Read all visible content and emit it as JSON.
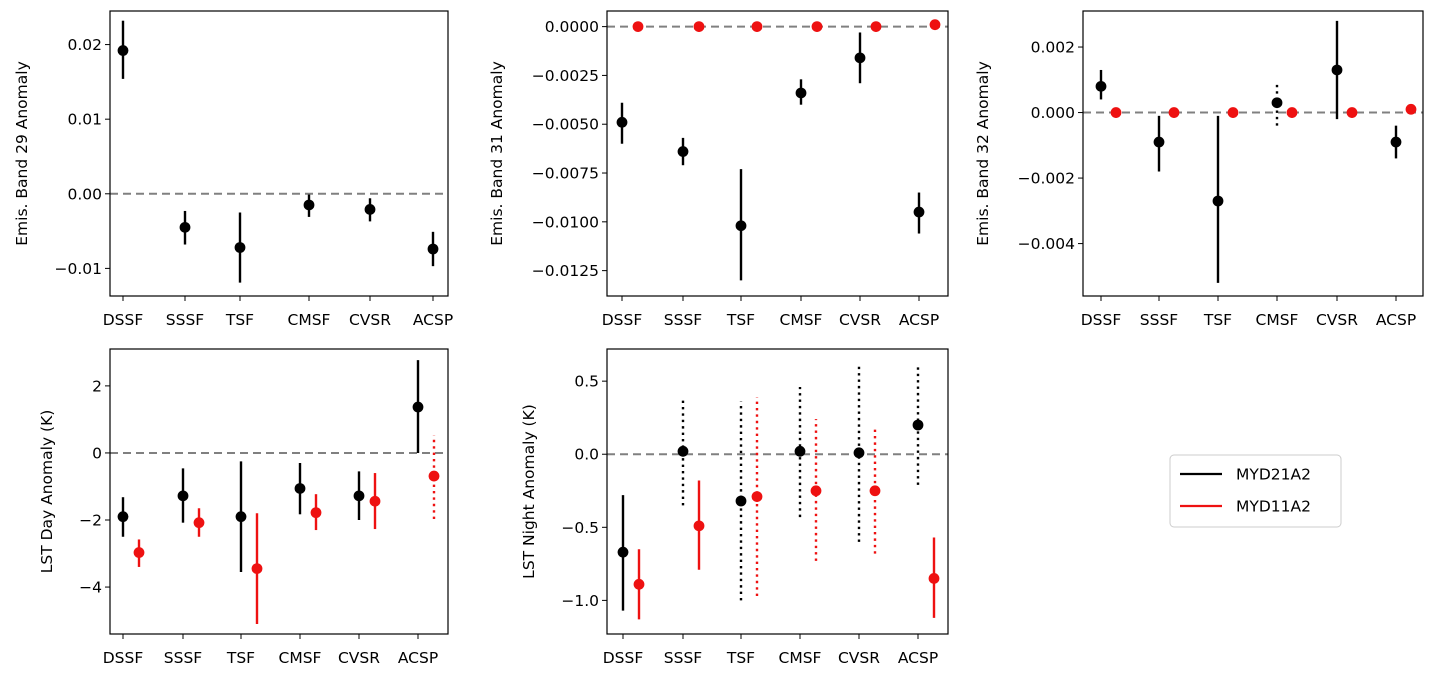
{
  "colors": {
    "series_1": "#000000",
    "series_2": "#ee1111",
    "zero_line": "#808080"
  },
  "legend": {
    "placement": "right of bottom row",
    "entries": [
      {
        "label": "MYD21A2",
        "color": "#000000"
      },
      {
        "label": "MYD11A2",
        "color": "#ee1111"
      }
    ]
  },
  "chart_data": [
    {
      "type": "scatter",
      "ylabel": "Emis. Band 29 Anomaly",
      "categories": [
        "DSSF",
        "SSSF",
        "TSF",
        "CMSF",
        "CVSR",
        "ACSP"
      ],
      "ylim": [
        -0.0137,
        0.0245
      ],
      "yticks": [
        -0.01,
        0.0,
        0.01,
        0.02
      ],
      "ytick_labels": [
        "−0.01",
        "0.00",
        "0.01",
        "0.02"
      ],
      "zero_line": true,
      "series": [
        {
          "name": "MYD21A2",
          "color": "#000000",
          "values": [
            0.0192,
            -0.0045,
            -0.0072,
            -0.0015,
            -0.0021,
            -0.0074
          ],
          "err_low": [
            0.0154,
            -0.0068,
            -0.0119,
            -0.0031,
            -0.0037,
            -0.0097
          ],
          "err_high": [
            0.0232,
            -0.0023,
            -0.0025,
            -0.0001,
            -0.0006,
            -0.0051
          ],
          "dotted": [
            false,
            false,
            false,
            false,
            false,
            false
          ]
        }
      ]
    },
    {
      "type": "scatter",
      "ylabel": "Emis. Band 31 Anomaly",
      "categories": [
        "DSSF",
        "SSSF",
        "TSF",
        "CMSF",
        "CVSR",
        "ACSP"
      ],
      "ylim": [
        -0.0138,
        0.0008
      ],
      "yticks": [
        -0.0125,
        -0.01,
        -0.0075,
        -0.005,
        -0.0025,
        0.0
      ],
      "ytick_labels": [
        "−0.0125",
        "−0.0100",
        "−0.0075",
        "−0.0050",
        "−0.0025",
        "0.0000"
      ],
      "zero_line": true,
      "series": [
        {
          "name": "MYD21A2",
          "color": "#000000",
          "values": [
            -0.0049,
            -0.0064,
            -0.0102,
            -0.0034,
            -0.0016,
            -0.0095
          ],
          "err_low": [
            -0.006,
            -0.0071,
            -0.013,
            -0.004,
            -0.0029,
            -0.0106
          ],
          "err_high": [
            -0.0039,
            -0.0057,
            -0.0073,
            -0.0027,
            -0.0003,
            -0.0085
          ],
          "dotted": [
            false,
            false,
            false,
            false,
            false,
            false
          ]
        },
        {
          "name": "MYD11A2",
          "color": "#ee1111",
          "values": [
            0.0,
            0.0,
            0.0,
            0.0,
            0.0,
            0.0001
          ],
          "err_low": [
            0.0,
            0.0,
            0.0,
            0.0,
            0.0,
            0.0001
          ],
          "err_high": [
            0.0,
            0.0,
            0.0,
            0.0,
            0.0,
            0.0001
          ],
          "dotted": [
            false,
            false,
            false,
            false,
            false,
            false
          ]
        }
      ]
    },
    {
      "type": "scatter",
      "ylabel": "Emis. Band 32 Anomaly",
      "categories": [
        "DSSF",
        "SSSF",
        "TSF",
        "CMSF",
        "CVSR",
        "ACSP"
      ],
      "ylim": [
        -0.0056,
        0.0031
      ],
      "yticks": [
        -0.004,
        -0.002,
        0.0,
        0.002
      ],
      "ytick_labels": [
        "−0.004",
        "−0.002",
        "0.000",
        "0.002"
      ],
      "zero_line": true,
      "series": [
        {
          "name": "MYD21A2",
          "color": "#000000",
          "values": [
            0.0008,
            -0.0009,
            -0.0027,
            0.0003,
            0.0013,
            -0.0009
          ],
          "err_low": [
            0.0004,
            -0.0018,
            -0.0052,
            -0.0004,
            -0.0002,
            -0.0014
          ],
          "err_high": [
            0.0013,
            -0.0001,
            -0.0001,
            0.0009,
            0.0028,
            -0.0004
          ],
          "dotted": [
            false,
            false,
            false,
            true,
            false,
            false
          ]
        },
        {
          "name": "MYD11A2",
          "color": "#ee1111",
          "values": [
            0.0,
            0.0,
            0.0,
            0.0,
            0.0,
            0.0001
          ],
          "err_low": [
            0.0,
            0.0,
            0.0,
            0.0,
            0.0,
            0.0001
          ],
          "err_high": [
            0.0,
            0.0,
            0.0,
            0.0,
            0.0,
            0.0001
          ],
          "dotted": [
            false,
            false,
            false,
            false,
            false,
            false
          ]
        }
      ]
    },
    {
      "type": "scatter",
      "ylabel": "LST Day Anomaly (K)",
      "categories": [
        "DSSF",
        "SSSF",
        "TSF",
        "CMSF",
        "CVSR",
        "ACSP"
      ],
      "ylim": [
        -5.4,
        3.1
      ],
      "yticks": [
        -4,
        -2,
        0,
        2
      ],
      "ytick_labels": [
        "−4",
        "−2",
        "0",
        "2"
      ],
      "zero_line": true,
      "series": [
        {
          "name": "MYD21A2",
          "color": "#000000",
          "values": [
            -1.9,
            -1.28,
            -1.9,
            -1.06,
            -1.28,
            1.37
          ],
          "err_low": [
            -2.5,
            -2.08,
            -3.55,
            -1.83,
            -2.0,
            0.0
          ],
          "err_high": [
            -1.32,
            -0.46,
            -0.25,
            -0.3,
            -0.55,
            2.77
          ],
          "dotted": [
            false,
            false,
            false,
            false,
            false,
            false
          ]
        },
        {
          "name": "MYD11A2",
          "color": "#ee1111",
          "values": [
            -2.97,
            -2.08,
            -3.45,
            -1.78,
            -1.44,
            -0.69
          ],
          "err_low": [
            -3.4,
            -2.5,
            -5.1,
            -2.3,
            -2.27,
            -1.97
          ],
          "err_high": [
            -2.58,
            -1.65,
            -1.8,
            -1.23,
            -0.6,
            0.52
          ],
          "dotted": [
            false,
            false,
            false,
            false,
            false,
            true
          ]
        }
      ]
    },
    {
      "type": "scatter",
      "ylabel": "LST Night Anomaly (K)",
      "categories": [
        "DSSF",
        "SSSF",
        "TSF",
        "CMSF",
        "CVSR",
        "ACSP"
      ],
      "ylim": [
        -1.23,
        0.72
      ],
      "yticks": [
        -1.0,
        -0.5,
        0.0,
        0.5
      ],
      "ytick_labels": [
        "−1.0",
        "−0.5",
        "0.0",
        "0.5"
      ],
      "zero_line": true,
      "series": [
        {
          "name": "MYD21A2",
          "color": "#000000",
          "values": [
            -0.67,
            0.02,
            -0.32,
            0.02,
            0.01,
            0.2
          ],
          "err_low": [
            -1.07,
            -0.35,
            -1.0,
            -0.43,
            -0.6,
            -0.21
          ],
          "err_high": [
            -0.28,
            0.39,
            0.36,
            0.46,
            0.6,
            0.6
          ],
          "dotted": [
            false,
            true,
            true,
            true,
            true,
            true
          ]
        },
        {
          "name": "MYD11A2",
          "color": "#ee1111",
          "values": [
            -0.89,
            -0.49,
            -0.29,
            -0.25,
            -0.25,
            -0.85
          ],
          "err_low": [
            -1.13,
            -0.79,
            -0.97,
            -0.73,
            -0.68,
            -1.12
          ],
          "err_high": [
            -0.65,
            -0.18,
            0.39,
            0.24,
            0.19,
            -0.57
          ],
          "dotted": [
            false,
            false,
            true,
            true,
            true,
            false
          ]
        }
      ]
    }
  ]
}
